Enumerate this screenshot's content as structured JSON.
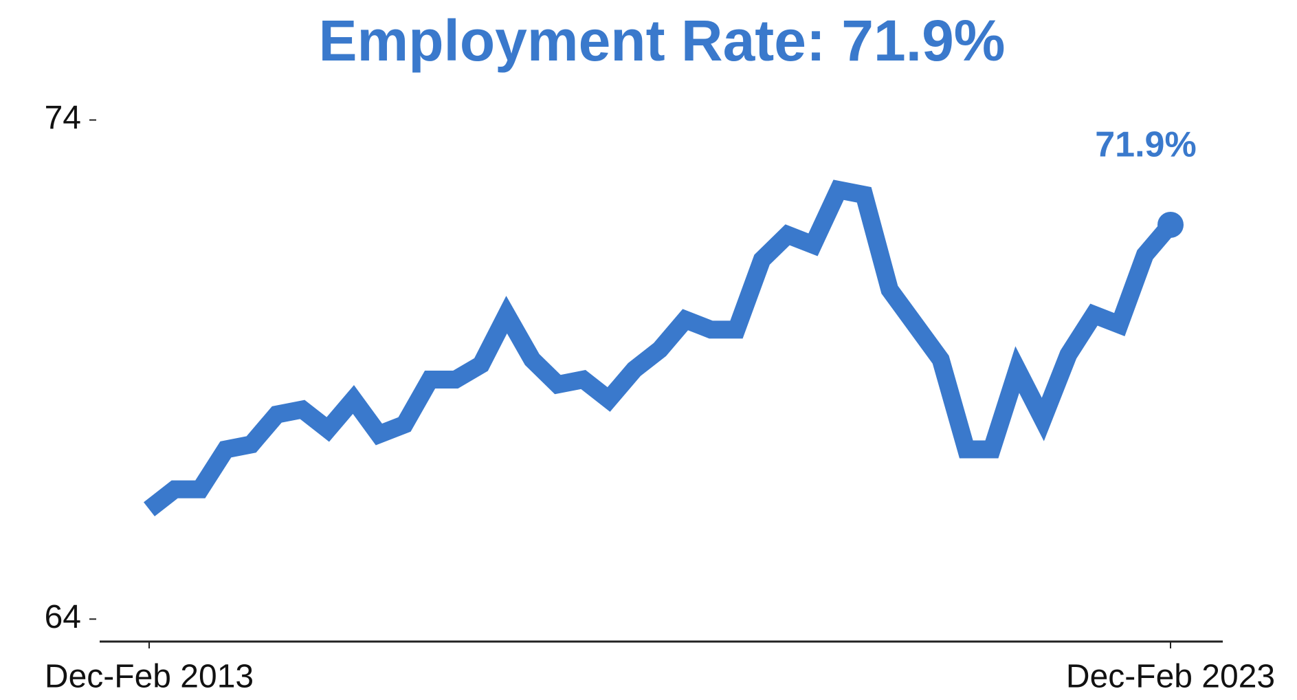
{
  "chart_data": {
    "type": "line",
    "title": "Employment Rate: 71.9%",
    "annotation": "71.9%",
    "categories": [
      "Dec-Feb 2013",
      null,
      null,
      null,
      null,
      null,
      null,
      null,
      null,
      null,
      null,
      null,
      null,
      null,
      null,
      null,
      null,
      null,
      null,
      null,
      null,
      null,
      null,
      null,
      null,
      null,
      null,
      null,
      null,
      null,
      null,
      null,
      null,
      null,
      null,
      null,
      null,
      null,
      null,
      null,
      "Dec-Feb 2023"
    ],
    "series": [
      {
        "name": "Employment rate",
        "color": "#3a79cc",
        "values": [
          66.2,
          66.6,
          66.6,
          67.4,
          67.5,
          68.1,
          68.2,
          67.8,
          68.4,
          67.7,
          67.9,
          68.8,
          68.8,
          69.1,
          70.1,
          69.2,
          68.7,
          68.8,
          68.4,
          69.0,
          69.4,
          70.0,
          69.8,
          69.8,
          71.2,
          71.7,
          71.5,
          72.6,
          72.5,
          70.6,
          69.9,
          69.2,
          67.4,
          67.4,
          69.0,
          68.0,
          69.3,
          70.1,
          69.9,
          71.3,
          71.9
        ]
      }
    ],
    "ylim": [
      63.55,
      74.2
    ],
    "yticks": [
      64,
      74
    ],
    "grid": false
  }
}
